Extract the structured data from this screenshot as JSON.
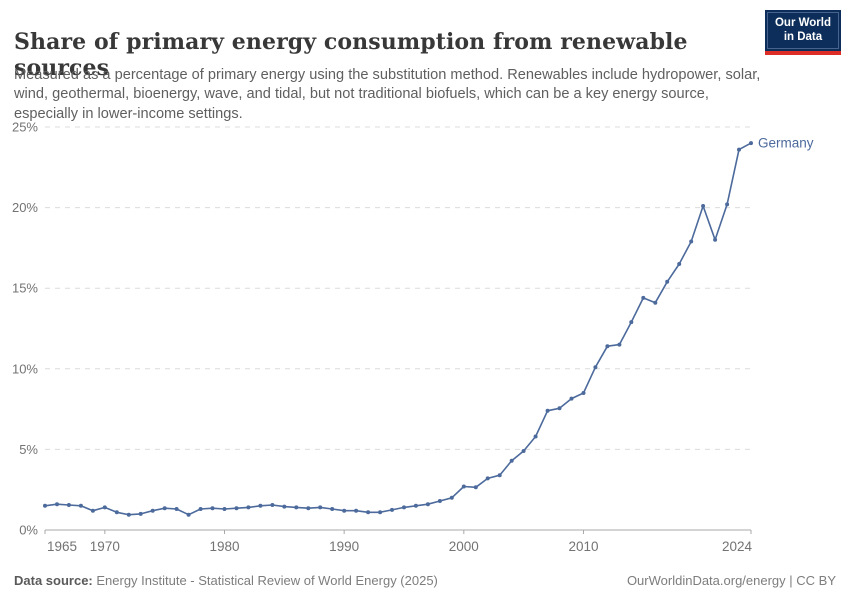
{
  "header": {
    "title": "Share of primary energy consumption from renewable sources",
    "subtitle": "Measured as a percentage of primary energy using the substitution method. Renewables include hydropower, solar, wind, geothermal, bioenergy, wave, and tidal, but not traditional biofuels, which can be a key energy source, especially in lower-income settings.",
    "logo": {
      "line1": "Our World",
      "line2": "in Data",
      "bg": "#0d2e5a",
      "accent": "#dc2e27"
    }
  },
  "chart_data": {
    "type": "line",
    "title": "Share of primary energy consumption from renewable sources",
    "xlabel": "",
    "ylabel": "",
    "xlim": [
      1965,
      2024
    ],
    "ylim": [
      0,
      25
    ],
    "grid": "horizontal-dashed",
    "x_ticks": [
      1965,
      1970,
      1980,
      1990,
      2000,
      2010,
      2024
    ],
    "y_ticks": [
      0,
      5,
      10,
      15,
      20,
      25
    ],
    "y_tick_suffix": "%",
    "end_label": "Germany",
    "line_color": "#4c6a9c",
    "grid_color": "#dcdcdc",
    "axis_color": "#a8a8a8",
    "tick_label_color": "#737373",
    "series": [
      {
        "name": "Germany",
        "x": [
          1965,
          1966,
          1967,
          1968,
          1969,
          1970,
          1971,
          1972,
          1973,
          1974,
          1975,
          1976,
          1977,
          1978,
          1979,
          1980,
          1981,
          1982,
          1983,
          1984,
          1985,
          1986,
          1987,
          1988,
          1989,
          1990,
          1991,
          1992,
          1993,
          1994,
          1995,
          1996,
          1997,
          1998,
          1999,
          2000,
          2001,
          2002,
          2003,
          2004,
          2005,
          2006,
          2007,
          2008,
          2009,
          2010,
          2011,
          2012,
          2013,
          2014,
          2015,
          2016,
          2017,
          2018,
          2019,
          2020,
          2021,
          2022,
          2023,
          2024
        ],
        "values": [
          1.5,
          1.6,
          1.55,
          1.5,
          1.2,
          1.4,
          1.1,
          0.95,
          1.0,
          1.2,
          1.35,
          1.3,
          0.95,
          1.3,
          1.35,
          1.3,
          1.35,
          1.4,
          1.5,
          1.55,
          1.45,
          1.4,
          1.35,
          1.4,
          1.3,
          1.2,
          1.2,
          1.1,
          1.1,
          1.25,
          1.4,
          1.5,
          1.6,
          1.8,
          2.0,
          2.7,
          2.65,
          3.2,
          3.4,
          4.3,
          4.9,
          5.8,
          7.4,
          7.55,
          8.15,
          8.5,
          10.1,
          11.4,
          11.5,
          12.9,
          14.4,
          14.1,
          15.4,
          16.5,
          17.9,
          20.1,
          18.0,
          20.2,
          23.6,
          24.0
        ]
      }
    ]
  },
  "footer": {
    "datasource_label": "Data source:",
    "datasource": " Energy Institute - Statistical Review of World Energy (2025)",
    "attribution": "OurWorldinData.org/energy | CC BY"
  }
}
